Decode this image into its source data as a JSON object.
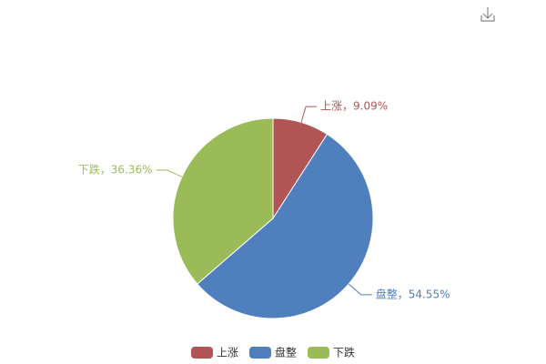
{
  "chart_data": {
    "type": "pie",
    "categories": [
      "上涨",
      "盘整",
      "下跌"
    ],
    "values": [
      9.09,
      54.55,
      36.36
    ],
    "value_labels": [
      "上涨，9.09%",
      "盘整，54.55%",
      "下跌，36.36%"
    ],
    "colors": [
      "#b05455",
      "#4f7fbc",
      "#9bbb59"
    ],
    "legend": "bottom"
  }
}
